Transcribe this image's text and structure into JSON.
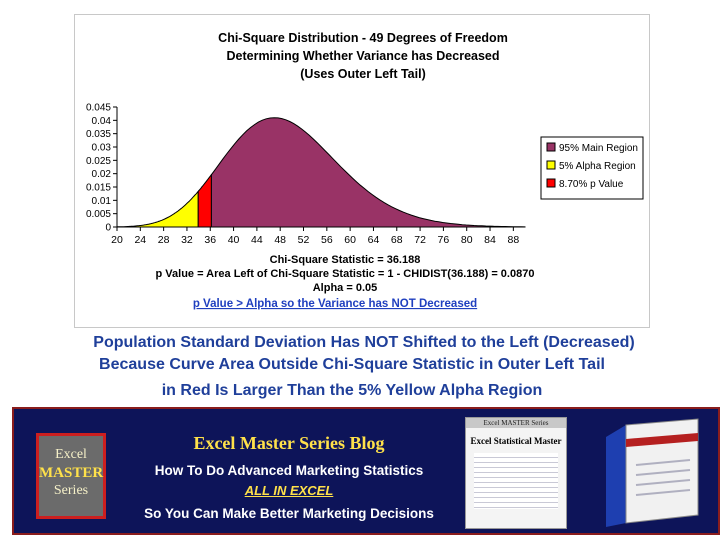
{
  "chart_data": {
    "type": "area",
    "title_lines": [
      "Chi-Square Distribution - 49 Degrees of Freedom",
      "Determining Whether Variance has Decreased",
      "(Uses Outer Left Tail)"
    ],
    "xlim": [
      20,
      90
    ],
    "ylim": [
      0,
      0.045
    ],
    "x_ticks": [
      "20",
      "24",
      "28",
      "32",
      "36",
      "40",
      "44",
      "48",
      "52",
      "56",
      "60",
      "64",
      "68",
      "72",
      "76",
      "80",
      "84",
      "88"
    ],
    "y_ticks": [
      "0",
      "0.005",
      "0.01",
      "0.015",
      "0.02",
      "0.025",
      "0.03",
      "0.035",
      "0.04",
      "0.045"
    ],
    "degrees_of_freedom": 49,
    "series": [
      {
        "name": "95% Main Region",
        "color": "#993366",
        "x_range": [
          36.188,
          90
        ]
      },
      {
        "name": "5% Alpha Region",
        "color": "#ffff00",
        "x_range": [
          20,
          33.93
        ]
      },
      {
        "name": "8.70% p Value",
        "color": "#ff0000",
        "x_range": [
          33.93,
          36.188
        ]
      }
    ],
    "legend_position": "right",
    "grid": false,
    "annotations": [
      "Chi-Square Statistic = 36.188",
      "p Value = Area Left of Chi-Square Statistic = 1 - CHIDIST(36.188) = 0.0870",
      "Alpha = 0.05",
      "p Value > Alpha so the Variance has NOT Decreased"
    ],
    "chi_square_statistic": 36.188,
    "alpha_critical_value": 33.93
  },
  "caption": {
    "line1": "Population Standard Deviation Has NOT Shifted to the Left (Decreased)",
    "line2": "Because Curve Area Outside Chi-Square Statistic in Outer Left Tail",
    "line3": "in Red Is Larger Than the 5% Yellow Alpha Region"
  },
  "banner": {
    "logo": {
      "excel": "Excel",
      "master": "MASTER",
      "series": "Series"
    },
    "title": "Excel Master Series Blog",
    "line1": "How To Do Advanced Marketing Statistics",
    "line2": "ALL IN EXCEL",
    "line3": "So You Can Make Better Marketing Decisions",
    "book": {
      "header": "Excel MASTER Series",
      "title": "Excel Statistical Master"
    },
    "colors": {
      "background": "#0d1459",
      "border": "#8a1d1d",
      "accent": "#ffe14a"
    }
  }
}
